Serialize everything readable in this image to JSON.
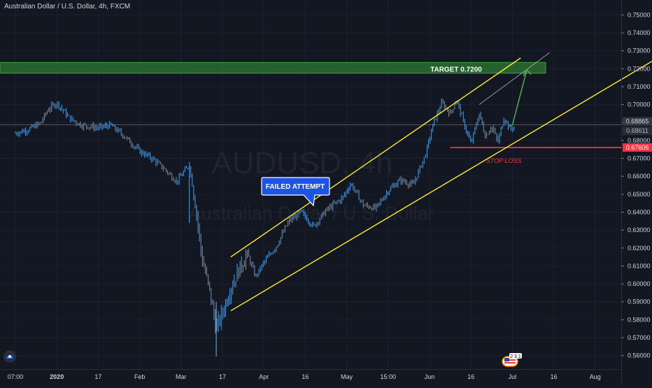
{
  "header": {
    "title": "Australian Dollar / U.S. Dollar, 4h, FXCM"
  },
  "watermark": {
    "symbol": "AUDUSD, 4h",
    "name": "Australian Dollar / U.S. Dollar"
  },
  "annotations": {
    "target_label": "TARGET 0.7200",
    "stop_label": "STOP LOSS",
    "failed_label": "FAILED ATTEMPT"
  },
  "price_badges": {
    "close": "0.68865",
    "current": "0.68611",
    "stop": "0.67606"
  },
  "icons": {
    "logo": "tradingview-logo-icon",
    "events": "us-flag-events-badge-icon",
    "events_count": "2 3 1"
  },
  "colors": {
    "background": "#131722",
    "candles": "#5b9bd5",
    "channel": "#ffeb3b",
    "target_zone": "#2e7d32",
    "stop": "#f23645",
    "arrow": "#4caf50"
  },
  "chart_data": {
    "type": "candlestick",
    "ylim": [
      0.555,
      0.755
    ],
    "x_ticks": [
      {
        "label": "07:00",
        "x": 0
      },
      {
        "label": "2020",
        "x": 1
      },
      {
        "label": "17",
        "x": 2
      },
      {
        "label": "Feb",
        "x": 3
      },
      {
        "label": "Mar",
        "x": 4
      },
      {
        "label": "17",
        "x": 5
      },
      {
        "label": "Apr",
        "x": 6
      },
      {
        "label": "16",
        "x": 7
      },
      {
        "label": "May",
        "x": 8
      },
      {
        "label": "15:00",
        "x": 9
      },
      {
        "label": "Jun",
        "x": 10
      },
      {
        "label": "16",
        "x": 11
      },
      {
        "label": "Jul",
        "x": 12
      },
      {
        "label": "16",
        "x": 13
      },
      {
        "label": "Aug",
        "x": 14
      }
    ],
    "y_ticks": [
      "0.75000",
      "0.74000",
      "0.73000",
      "0.72000",
      "0.71000",
      "0.70000",
      "0.69000",
      "0.68000",
      "0.67000",
      "0.66000",
      "0.65000",
      "0.64000",
      "0.63000",
      "0.62000",
      "0.61000",
      "0.60000",
      "0.59000",
      "0.58000",
      "0.57000",
      "0.56000"
    ],
    "price_path": [
      [
        0.0,
        0.684
      ],
      [
        0.3,
        0.686
      ],
      [
        0.6,
        0.6895
      ],
      [
        0.8,
        0.6975
      ],
      [
        1.0,
        0.701
      ],
      [
        1.3,
        0.6925
      ],
      [
        1.6,
        0.6885
      ],
      [
        2.0,
        0.687
      ],
      [
        2.3,
        0.6885
      ],
      [
        2.6,
        0.683
      ],
      [
        3.0,
        0.674
      ],
      [
        3.3,
        0.67
      ],
      [
        3.6,
        0.664
      ],
      [
        3.9,
        0.657
      ],
      [
        4.05,
        0.662
      ],
      [
        4.2,
        0.666
      ],
      [
        4.35,
        0.644
      ],
      [
        4.5,
        0.615
      ],
      [
        4.7,
        0.595
      ],
      [
        4.85,
        0.575
      ],
      [
        5.0,
        0.584
      ],
      [
        5.2,
        0.598
      ],
      [
        5.4,
        0.608
      ],
      [
        5.6,
        0.617
      ],
      [
        5.8,
        0.604
      ],
      [
        6.0,
        0.612
      ],
      [
        6.3,
        0.621
      ],
      [
        6.6,
        0.635
      ],
      [
        6.9,
        0.64
      ],
      [
        7.2,
        0.632
      ],
      [
        7.5,
        0.641
      ],
      [
        7.9,
        0.648
      ],
      [
        8.1,
        0.656
      ],
      [
        8.4,
        0.644
      ],
      [
        8.7,
        0.642
      ],
      [
        9.0,
        0.652
      ],
      [
        9.3,
        0.658
      ],
      [
        9.6,
        0.655
      ],
      [
        9.9,
        0.672
      ],
      [
        10.1,
        0.69
      ],
      [
        10.3,
        0.701
      ],
      [
        10.5,
        0.695
      ],
      [
        10.65,
        0.703
      ],
      [
        10.85,
        0.688
      ],
      [
        11.0,
        0.678
      ],
      [
        11.2,
        0.695
      ],
      [
        11.35,
        0.682
      ],
      [
        11.5,
        0.688
      ],
      [
        11.65,
        0.679
      ],
      [
        11.8,
        0.693
      ],
      [
        11.95,
        0.686
      ],
      [
        12.05,
        0.688
      ]
    ],
    "channel": {
      "upper": [
        [
          5.2,
          0.615
        ],
        [
          12.2,
          0.726
        ]
      ],
      "lower": [
        [
          5.2,
          0.585
        ],
        [
          15.8,
          0.73
        ]
      ],
      "inner": [
        [
          11.2,
          0.7
        ],
        [
          12.9,
          0.729
        ]
      ]
    },
    "target_zone": {
      "from": 0.7175,
      "to": 0.7235,
      "label": "TARGET 0.7200"
    },
    "stop_level": {
      "value": 0.67606,
      "x_start": 10.5
    },
    "close_level": 0.68865,
    "projection": [
      [
        12.0,
        0.6885
      ],
      [
        12.35,
        0.7195
      ]
    ]
  }
}
